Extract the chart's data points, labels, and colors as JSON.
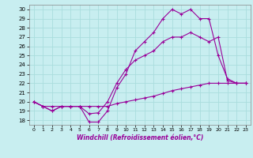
{
  "background_color": "#c8eef0",
  "grid_color": "#aadddd",
  "line_color": "#990099",
  "x_ticks": [
    0,
    1,
    2,
    3,
    4,
    5,
    6,
    7,
    8,
    9,
    10,
    11,
    12,
    13,
    14,
    15,
    16,
    17,
    18,
    19,
    20,
    21,
    22,
    23
  ],
  "y_ticks": [
    18,
    19,
    20,
    21,
    22,
    23,
    24,
    25,
    26,
    27,
    28,
    29,
    30
  ],
  "ylim": [
    17.5,
    30.5
  ],
  "xlim": [
    -0.5,
    23.5
  ],
  "xlabel": "Windchill (Refroidissement éolien,°C)",
  "curve1": [
    20,
    19.5,
    19,
    19.5,
    19.5,
    19.5,
    17.8,
    17.8,
    19,
    21.5,
    23,
    25.5,
    26.5,
    27.5,
    29,
    30,
    29.5,
    30,
    29,
    29,
    25,
    22.5,
    22,
    22
  ],
  "curve2": [
    20,
    19.5,
    19,
    19.5,
    19.5,
    19.5,
    18.7,
    18.8,
    20,
    22,
    23.5,
    24.5,
    25,
    25.5,
    26.5,
    27,
    27,
    27.5,
    27,
    26.5,
    27,
    22.3,
    22,
    22
  ],
  "curve3": [
    20,
    19.5,
    19.5,
    19.5,
    19.5,
    19.5,
    19.5,
    19.5,
    19.5,
    19.8,
    20,
    20.2,
    20.4,
    20.6,
    20.9,
    21.2,
    21.4,
    21.6,
    21.8,
    22,
    22,
    22,
    22,
    22
  ]
}
